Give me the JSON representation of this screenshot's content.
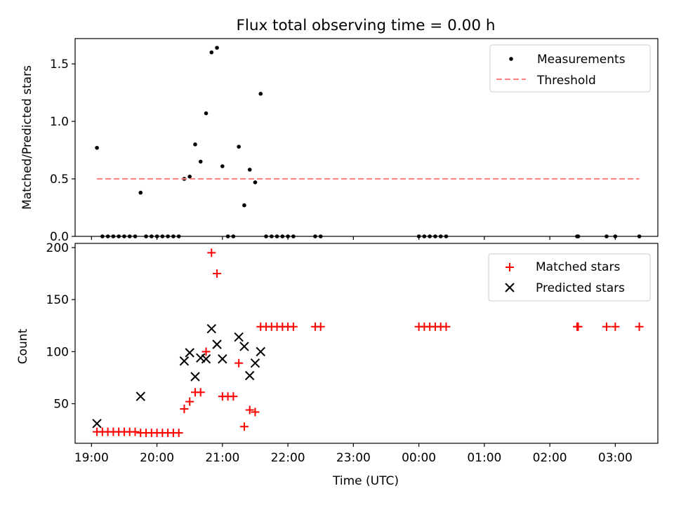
{
  "title": "Flux total observing time = 0.00 h",
  "chart_data": [
    {
      "type": "scatter",
      "ylabel": "Matched/Predicted stars",
      "ylim": [
        0,
        1.72
      ],
      "y_ticks": [
        0.0,
        0.5,
        1.0,
        1.5
      ],
      "y_tick_labels": [
        "0.0",
        "0.5",
        "1.0",
        "1.5"
      ],
      "legend_position": "top-right",
      "grid": false,
      "series": [
        {
          "name": "Measurements",
          "marker": "dot",
          "color": "#000000",
          "points": [
            [
              "19:05",
              0.77
            ],
            [
              "19:10",
              0.0
            ],
            [
              "19:15",
              0.0
            ],
            [
              "19:20",
              0.0
            ],
            [
              "19:25",
              0.0
            ],
            [
              "19:30",
              0.0
            ],
            [
              "19:35",
              0.0
            ],
            [
              "19:40",
              0.0
            ],
            [
              "19:45",
              0.38
            ],
            [
              "19:50",
              0.0
            ],
            [
              "19:55",
              0.0
            ],
            [
              "20:00",
              0.0
            ],
            [
              "20:05",
              0.0
            ],
            [
              "20:10",
              0.0
            ],
            [
              "20:15",
              0.0
            ],
            [
              "20:20",
              0.0
            ],
            [
              "20:25",
              0.5
            ],
            [
              "20:30",
              0.52
            ],
            [
              "20:35",
              0.8
            ],
            [
              "20:40",
              0.65
            ],
            [
              "20:45",
              1.07
            ],
            [
              "20:50",
              1.6
            ],
            [
              "20:55",
              1.64
            ],
            [
              "21:00",
              0.61
            ],
            [
              "21:05",
              0.0
            ],
            [
              "21:10",
              0.0
            ],
            [
              "21:15",
              0.78
            ],
            [
              "21:20",
              0.27
            ],
            [
              "21:25",
              0.58
            ],
            [
              "21:30",
              0.47
            ],
            [
              "21:35",
              1.24
            ],
            [
              "21:40",
              0.0
            ],
            [
              "21:45",
              0.0
            ],
            [
              "21:50",
              0.0
            ],
            [
              "21:55",
              0.0
            ],
            [
              "22:00",
              0.0
            ],
            [
              "22:05",
              0.0
            ],
            [
              "22:25",
              0.0
            ],
            [
              "22:30",
              0.0
            ],
            [
              "00:00",
              0.0
            ],
            [
              "00:05",
              0.0
            ],
            [
              "00:10",
              0.0
            ],
            [
              "00:15",
              0.0
            ],
            [
              "00:20",
              0.0
            ],
            [
              "00:25",
              0.0
            ],
            [
              "02:25",
              0.0
            ],
            [
              "02:26",
              0.0
            ],
            [
              "02:52",
              0.0
            ],
            [
              "03:00",
              0.0
            ],
            [
              "03:22",
              0.0
            ]
          ]
        },
        {
          "name": "Threshold",
          "marker": "dashed-line",
          "color": "#ff7f7f",
          "points": [
            [
              "19:05",
              0.5
            ],
            [
              "03:22",
              0.5
            ]
          ]
        }
      ]
    },
    {
      "type": "scatter",
      "xlabel": "Time (UTC)",
      "ylabel": "Count",
      "ylim": [
        12,
        204
      ],
      "y_ticks": [
        50,
        100,
        150,
        200
      ],
      "y_tick_labels": [
        "50",
        "100",
        "150",
        "200"
      ],
      "x_tick_labels": [
        "19:00",
        "20:00",
        "21:00",
        "22:00",
        "23:00",
        "00:00",
        "01:00",
        "02:00",
        "03:00"
      ],
      "legend_position": "top-right",
      "grid": false,
      "series": [
        {
          "name": "Matched stars",
          "marker": "plus",
          "color": "#ff0000",
          "points": [
            [
              "19:05",
              23
            ],
            [
              "19:10",
              23
            ],
            [
              "19:15",
              23
            ],
            [
              "19:20",
              23
            ],
            [
              "19:25",
              23
            ],
            [
              "19:30",
              23
            ],
            [
              "19:35",
              23
            ],
            [
              "19:40",
              23
            ],
            [
              "19:45",
              22
            ],
            [
              "19:50",
              22
            ],
            [
              "19:55",
              22
            ],
            [
              "20:00",
              22
            ],
            [
              "20:05",
              22
            ],
            [
              "20:10",
              22
            ],
            [
              "20:15",
              22
            ],
            [
              "20:20",
              22
            ],
            [
              "20:25",
              45
            ],
            [
              "20:30",
              52
            ],
            [
              "20:35",
              61
            ],
            [
              "20:40",
              61
            ],
            [
              "20:45",
              100
            ],
            [
              "20:50",
              195
            ],
            [
              "20:55",
              175
            ],
            [
              "21:00",
              57
            ],
            [
              "21:05",
              57
            ],
            [
              "21:10",
              57
            ],
            [
              "21:15",
              89
            ],
            [
              "21:20",
              28
            ],
            [
              "21:25",
              44
            ],
            [
              "21:30",
              42
            ],
            [
              "21:35",
              124
            ],
            [
              "21:40",
              124
            ],
            [
              "21:45",
              124
            ],
            [
              "21:50",
              124
            ],
            [
              "21:55",
              124
            ],
            [
              "22:00",
              124
            ],
            [
              "22:05",
              124
            ],
            [
              "22:25",
              124
            ],
            [
              "22:30",
              124
            ],
            [
              "00:00",
              124
            ],
            [
              "00:05",
              124
            ],
            [
              "00:10",
              124
            ],
            [
              "00:15",
              124
            ],
            [
              "00:20",
              124
            ],
            [
              "00:25",
              124
            ],
            [
              "02:25",
              124
            ],
            [
              "02:26",
              124
            ],
            [
              "02:52",
              124
            ],
            [
              "03:00",
              124
            ],
            [
              "03:22",
              124
            ]
          ]
        },
        {
          "name": "Predicted stars",
          "marker": "x",
          "color": "#000000",
          "points": [
            [
              "19:05",
              31
            ],
            [
              "19:45",
              57
            ],
            [
              "20:25",
              91
            ],
            [
              "20:30",
              99
            ],
            [
              "20:35",
              76
            ],
            [
              "20:40",
              94
            ],
            [
              "20:45",
              93
            ],
            [
              "20:50",
              122
            ],
            [
              "20:55",
              107
            ],
            [
              "21:00",
              93
            ],
            [
              "21:15",
              114
            ],
            [
              "21:20",
              105
            ],
            [
              "21:25",
              77
            ],
            [
              "21:30",
              89
            ],
            [
              "21:35",
              100
            ]
          ]
        }
      ]
    }
  ]
}
